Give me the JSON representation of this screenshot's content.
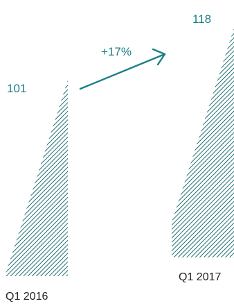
{
  "chart_data": {
    "type": "bar",
    "categories": [
      "Q1 2016",
      "Q1 2017"
    ],
    "values": [
      101,
      118
    ],
    "value_labels": [
      "101",
      "118"
    ],
    "change_label": "+17%",
    "title": "",
    "xlabel": "",
    "ylabel": "",
    "grid": false,
    "legend": "none"
  },
  "colors": {
    "accent": "#1a7f86",
    "hatch": "#1f6e74",
    "text": "#222222"
  }
}
